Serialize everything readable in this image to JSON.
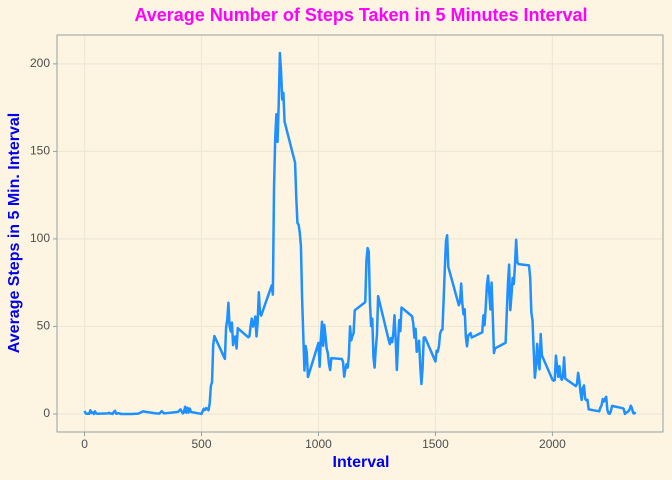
{
  "chart_data": {
    "type": "line",
    "title": "Average Number of Steps Taken in 5 Minutes Interval",
    "x_label": "Interval",
    "y_label": "Average Steps in 5 Min. Interval",
    "color": "#1e90ff",
    "grid": true,
    "xlim": [
      -117.75,
      2472.75
    ],
    "ylim": [
      -10.31,
      216.48
    ],
    "xticks": [
      0,
      500,
      1000,
      1500,
      2000
    ],
    "yticks": [
      0,
      50,
      100,
      150,
      200
    ],
    "x": [
      0,
      5,
      10,
      15,
      20,
      25,
      30,
      35,
      40,
      45,
      50,
      55,
      100,
      105,
      110,
      115,
      120,
      125,
      130,
      135,
      140,
      145,
      150,
      155,
      200,
      230,
      250,
      300,
      320,
      330,
      340,
      400,
      410,
      420,
      425,
      430,
      435,
      440,
      445,
      450,
      455,
      500,
      505,
      510,
      515,
      520,
      525,
      530,
      535,
      540,
      545,
      550,
      555,
      600,
      605,
      610,
      615,
      620,
      625,
      630,
      635,
      640,
      645,
      650,
      655,
      700,
      705,
      710,
      715,
      720,
      725,
      730,
      735,
      740,
      745,
      750,
      755,
      800,
      805,
      810,
      815,
      820,
      825,
      830,
      835,
      840,
      845,
      850,
      855,
      900,
      905,
      910,
      915,
      920,
      925,
      930,
      935,
      940,
      945,
      950,
      955,
      1000,
      1005,
      1010,
      1015,
      1020,
      1025,
      1030,
      1035,
      1040,
      1045,
      1050,
      1055,
      1100,
      1105,
      1110,
      1115,
      1120,
      1125,
      1130,
      1135,
      1140,
      1145,
      1150,
      1155,
      1200,
      1205,
      1210,
      1215,
      1220,
      1225,
      1230,
      1235,
      1240,
      1245,
      1250,
      1255,
      1300,
      1305,
      1310,
      1315,
      1320,
      1325,
      1330,
      1335,
      1340,
      1345,
      1350,
      1355,
      1400,
      1405,
      1410,
      1415,
      1420,
      1425,
      1430,
      1435,
      1440,
      1445,
      1450,
      1455,
      1500,
      1505,
      1510,
      1515,
      1520,
      1525,
      1530,
      1535,
      1540,
      1545,
      1550,
      1555,
      1600,
      1605,
      1610,
      1615,
      1620,
      1625,
      1630,
      1635,
      1640,
      1645,
      1650,
      1655,
      1700,
      1705,
      1710,
      1715,
      1720,
      1725,
      1730,
      1735,
      1740,
      1745,
      1750,
      1755,
      1800,
      1805,
      1810,
      1815,
      1820,
      1825,
      1830,
      1835,
      1840,
      1845,
      1850,
      1855,
      1900,
      1905,
      1910,
      1915,
      1920,
      1925,
      1930,
      1935,
      1940,
      1945,
      1950,
      1955,
      2000,
      2005,
      2010,
      2015,
      2020,
      2025,
      2030,
      2035,
      2040,
      2045,
      2050,
      2055,
      2100,
      2105,
      2110,
      2115,
      2120,
      2125,
      2130,
      2135,
      2140,
      2145,
      2150,
      2155,
      2200,
      2205,
      2210,
      2215,
      2220,
      2225,
      2230,
      2235,
      2240,
      2245,
      2250,
      2255,
      2300,
      2305,
      2310,
      2315,
      2320,
      2325,
      2330,
      2335,
      2340,
      2345,
      2350,
      2355
    ],
    "values": [
      1.7,
      0.3,
      0.1,
      0.2,
      0.1,
      2.1,
      0.5,
      0.9,
      0,
      1.5,
      0.3,
      0.1,
      0.3,
      0.7,
      0.2,
      0.3,
      0,
      1.1,
      1.8,
      0.2,
      0.2,
      0.4,
      0.3,
      0,
      0,
      0.2,
      1.5,
      0.4,
      0.2,
      1.6,
      0.3,
      1.2,
      2.6,
      0.3,
      1.1,
      4.1,
      0.7,
      3.5,
      0.8,
      3.1,
      1.1,
      0,
      1.6,
      3,
      2.2,
      3.3,
      3,
      2.1,
      6.1,
      16,
      18.3,
      39.5,
      44.5,
      31.5,
      49.3,
      53.8,
      63.5,
      50,
      47.1,
      52.2,
      39.3,
      44,
      44.2,
      37.4,
      49,
      43.8,
      44.4,
      50.5,
      54.5,
      49.9,
      50.9,
      55.7,
      44.3,
      52.3,
      69.5,
      57.8,
      56.2,
      73.4,
      68.2,
      129.4,
      157.5,
      171.2,
      155.4,
      177.3,
      206.2,
      195.9,
      179.6,
      183.4,
      167,
      143.5,
      124,
      109.1,
      108.1,
      103.7,
      95.9,
      66.2,
      45.2,
      24.8,
      38.8,
      35,
      21.1,
      40.6,
      27,
      42.4,
      52.7,
      38.9,
      50.8,
      44.3,
      37.4,
      34.7,
      28.3,
      25.1,
      31.9,
      31.4,
      29.7,
      21.3,
      25.5,
      28.4,
      26.5,
      33.4,
      50,
      42,
      44.6,
      46,
      59.2,
      63.9,
      87.6,
      94.8,
      92.8,
      63.4,
      50.2,
      54.5,
      32.4,
      26.5,
      37.7,
      45.1,
      67.3,
      42.3,
      39.9,
      43.3,
      41,
      46.2,
      56.4,
      42.8,
      25.1,
      39.9,
      53.5,
      47.3,
      60.8,
      55.8,
      51.9,
      43.6,
      48.7,
      35.5,
      37.5,
      41.8,
      27.5,
      17.1,
      26.1,
      43.6,
      43.8,
      30,
      36.1,
      35.5,
      38.8,
      46,
      47.8,
      48.1,
      65.3,
      82.9,
      98.7,
      102.1,
      84,
      62.1,
      64.1,
      74.5,
      63.2,
      56.9,
      59.8,
      43.9,
      38.6,
      44.7,
      45.5,
      46.2,
      43.7,
      46.6,
      56.3,
      50.7,
      61.2,
      73.4,
      79,
      68.9,
      59.7,
      75.1,
      56.5,
      34.8,
      37.5,
      40.7,
      58,
      74.7,
      85.3,
      59.3,
      67.8,
      77.7,
      74.2,
      85.3,
      99.5,
      86.6,
      85.6,
      84.9,
      77.8,
      58,
      53.4,
      36.3,
      20.7,
      27.4,
      40,
      30.2,
      25.5,
      45.7,
      33.5,
      19.6,
      19,
      19.3,
      33.3,
      26.8,
      21.2,
      27.3,
      21.3,
      19.5,
      21.3,
      32.3,
      20.2,
      15.9,
      17.2,
      23.5,
      19.2,
      12.5,
      8,
      14.7,
      16.3,
      8.7,
      7.8,
      8.1,
      2.6,
      1.5,
      3.7,
      4.8,
      8.5,
      7.1,
      8.7,
      9.8,
      2.2,
      0.3,
      0.1,
      1.6,
      4.6,
      3.3,
      2.8,
      0,
      0.8,
      1,
      1.6,
      2.6,
      4.7,
      3.3,
      0.6,
      0.2,
      1.1
    ]
  }
}
